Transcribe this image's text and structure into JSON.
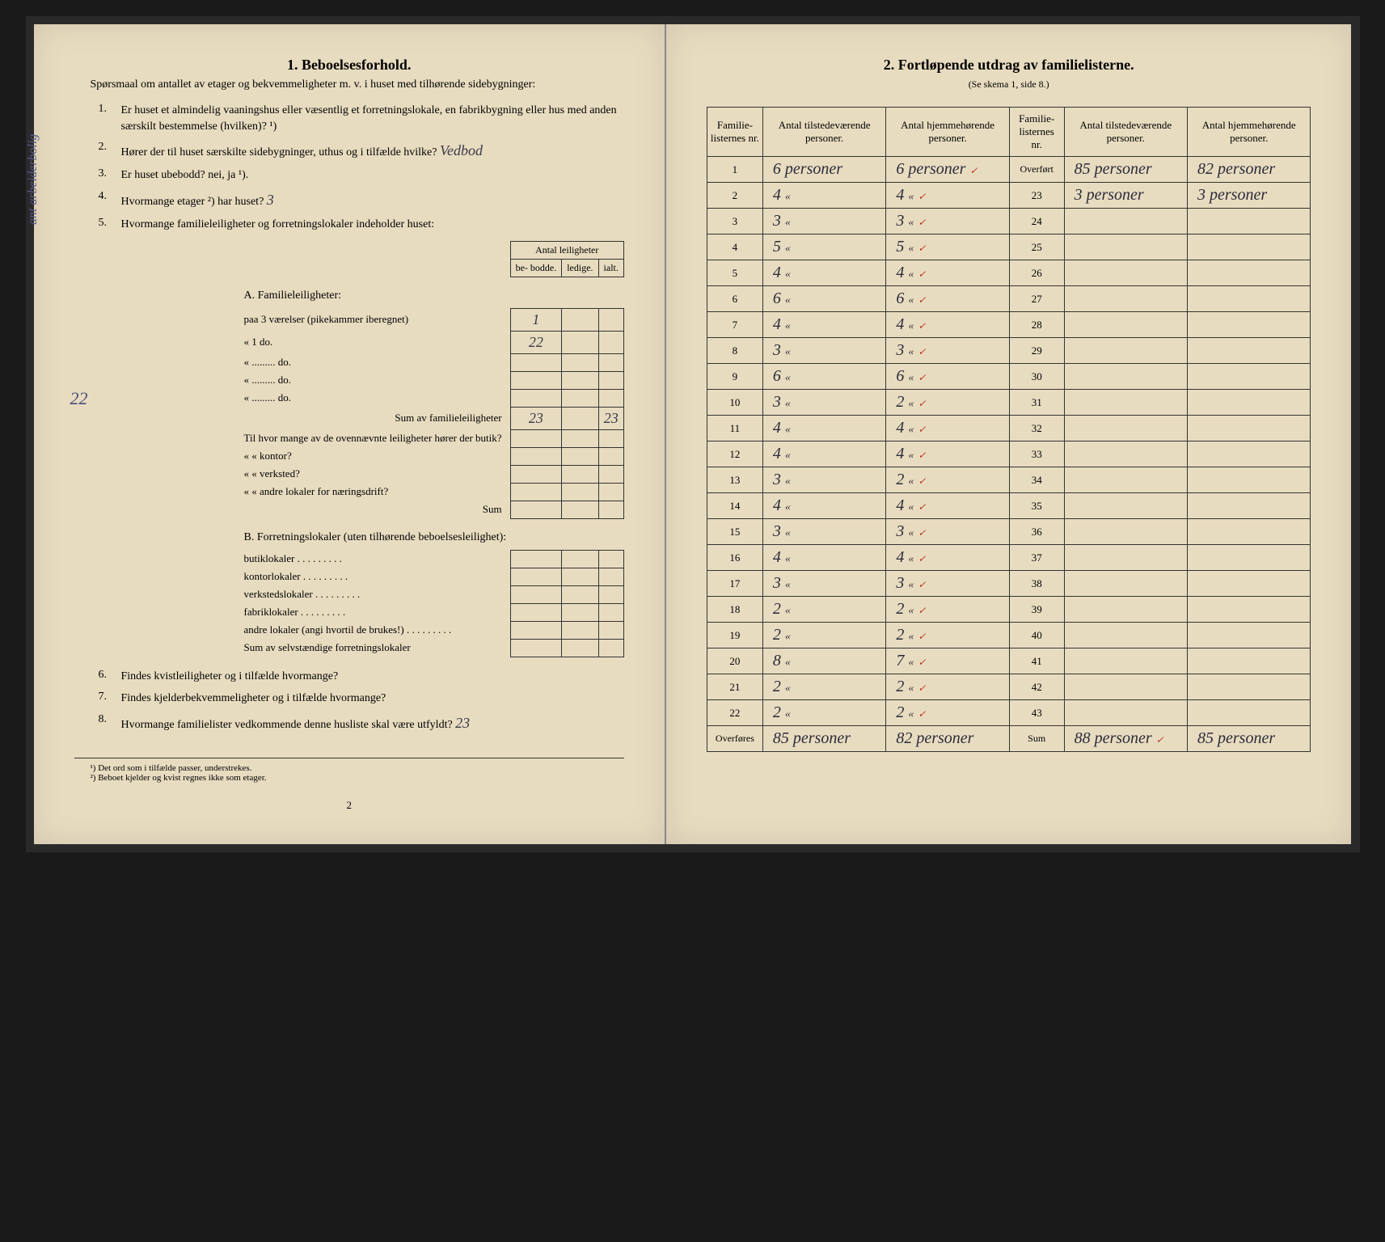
{
  "colors": {
    "paper": "#e8dcc0",
    "ink": "#1a1a1a",
    "handwriting": "#3a3a4a",
    "red_mark": "#c03020",
    "pencil_note": "#5a5a8a",
    "border": "#333333"
  },
  "left": {
    "title": "1.   Beboelsesforhold.",
    "intro": "Spørsmaal om antallet av etager og bekvemmeligheter m. v. i huset med tilhørende sidebygninger:",
    "margin_note": "ant arbeiderbolig",
    "side_number": "22",
    "questions": [
      {
        "n": "1.",
        "t": "Er huset et almindelig vaaningshus eller væsentlig et forretningslokale, en fabrikbygning eller hus med anden særskilt bestemmelse (hvilken)? ¹)"
      },
      {
        "n": "2.",
        "t": "Hører der til huset særskilte sidebygninger, uthus og i tilfælde hvilke?",
        "answer": "Vedbod"
      },
      {
        "n": "3.",
        "t": "Er huset ubebodd?  nei,  ja ¹).",
        "underline": "nei"
      },
      {
        "n": "4.",
        "t": "Hvormange etager ²) har huset?",
        "answer": "3"
      },
      {
        "n": "5.",
        "t": "Hvormange familieleiligheter og forretningslokaler indeholder huset:"
      }
    ],
    "innerTableHeader": {
      "top": "Antal leiligheter",
      "c1": "be-\nbodde.",
      "c2": "ledige.",
      "c3": "ialt."
    },
    "sectionA_title": "A. Familieleiligheter:",
    "sectionA_rows": [
      {
        "label": "paa 3 værelser (pikekammer iberegnet)",
        "bebodde": "1",
        "ledige": "",
        "ialt": ""
      },
      {
        "label": "«   1   do.",
        "bebodde": "22",
        "ledige": "",
        "ialt": ""
      },
      {
        "label": "«  .........  do.",
        "bebodde": "",
        "ledige": "",
        "ialt": ""
      },
      {
        "label": "«  .........  do.",
        "bebodde": "",
        "ledige": "",
        "ialt": ""
      },
      {
        "label": "«  .........  do.",
        "bebodde": "",
        "ledige": "",
        "ialt": ""
      }
    ],
    "sumA": {
      "label": "Sum av familieleiligheter",
      "bebodde": "23",
      "ledige": "",
      "ialt": "23"
    },
    "butikRows": [
      "Til hvor mange av de ovennævnte leiligheter hører der butik?",
      "«     «  kontor?",
      "«     «  verksted?",
      "«     «  andre lokaler for næringsdrift?"
    ],
    "sumLabel": "Sum",
    "sectionB_title": "B. Forretningslokaler (uten tilhørende beboelsesleilighet):",
    "sectionB_rows": [
      "butiklokaler",
      "kontorlokaler",
      "verkstedslokaler",
      "fabriklokaler",
      "andre lokaler (angi hvortil de brukes!)"
    ],
    "sumB": "Sum av selvstændige forretningslokaler",
    "q6": "Findes kvistleiligheter og i tilfælde hvormange?",
    "q7": "Findes kjelderbekvemmeligheter og i tilfælde hvormange?",
    "q8": "Hvormange familielister vedkommende denne husliste skal være utfyldt?",
    "q8_answer": "23",
    "footnote1": "¹) Det ord som i tilfælde passer, understrekes.",
    "footnote2": "²) Beboet kjelder og kvist regnes ikke som etager.",
    "pagenum": "2"
  },
  "right": {
    "title": "2.   Fortløpende utdrag av familielisterne.",
    "subtitle": "(Se skema 1, side 8.)",
    "headers": {
      "c1": "Familie-\nlisternes\nnr.",
      "c2": "Antal\ntilstedeværende\npersoner.",
      "c3": "Antal\nhjemmehørende\npersoner.",
      "c4": "Familie-\nlisternes\nnr.",
      "c5": "Antal\ntilstedeværende\npersoner.",
      "c6": "Antal\nhjemmehørende\npersoner."
    },
    "overfort_label": "Overført",
    "overfores_label": "Overføres",
    "sum_label": "Sum",
    "personer_word": "personer",
    "ditto": "«",
    "rows_left": [
      {
        "nr": "1",
        "til": "6",
        "hjem": "6",
        "unit": "personer"
      },
      {
        "nr": "2",
        "til": "4",
        "hjem": "4",
        "unit": "«"
      },
      {
        "nr": "3",
        "til": "3",
        "hjem": "3",
        "unit": "«"
      },
      {
        "nr": "4",
        "til": "5",
        "hjem": "5",
        "unit": "«"
      },
      {
        "nr": "5",
        "til": "4",
        "hjem": "4",
        "unit": "«"
      },
      {
        "nr": "6",
        "til": "6",
        "hjem": "6",
        "unit": "«"
      },
      {
        "nr": "7",
        "til": "4",
        "hjem": "4",
        "unit": "«"
      },
      {
        "nr": "8",
        "til": "3",
        "hjem": "3",
        "unit": "«"
      },
      {
        "nr": "9",
        "til": "6",
        "hjem": "6",
        "unit": "«"
      },
      {
        "nr": "10",
        "til": "3",
        "hjem": "2",
        "unit": "«"
      },
      {
        "nr": "11",
        "til": "4",
        "hjem": "4",
        "unit": "«"
      },
      {
        "nr": "12",
        "til": "4",
        "hjem": "4",
        "unit": "«"
      },
      {
        "nr": "13",
        "til": "3",
        "hjem": "2",
        "unit": "«"
      },
      {
        "nr": "14",
        "til": "4",
        "hjem": "4",
        "unit": "«"
      },
      {
        "nr": "15",
        "til": "3",
        "hjem": "3",
        "unit": "«"
      },
      {
        "nr": "16",
        "til": "4",
        "hjem": "4",
        "unit": "«"
      },
      {
        "nr": "17",
        "til": "3",
        "hjem": "3",
        "unit": "«"
      },
      {
        "nr": "18",
        "til": "2",
        "hjem": "2",
        "unit": "«"
      },
      {
        "nr": "19",
        "til": "2",
        "hjem": "2",
        "unit": "«"
      },
      {
        "nr": "20",
        "til": "8",
        "hjem": "7",
        "unit": "«"
      },
      {
        "nr": "21",
        "til": "2",
        "hjem": "2",
        "unit": "«"
      },
      {
        "nr": "22",
        "til": "2",
        "hjem": "2",
        "unit": "«"
      }
    ],
    "overfores": {
      "til": "85",
      "hjem": "82"
    },
    "overfort": {
      "til": "85",
      "hjem": "82"
    },
    "rows_right": [
      {
        "nr": "23",
        "til": "3",
        "hjem": "3",
        "unit": "personer"
      },
      {
        "nr": "24",
        "til": "",
        "hjem": "",
        "unit": ""
      },
      {
        "nr": "25",
        "til": "",
        "hjem": "",
        "unit": ""
      },
      {
        "nr": "26",
        "til": "",
        "hjem": "",
        "unit": ""
      },
      {
        "nr": "27",
        "til": "",
        "hjem": "",
        "unit": ""
      },
      {
        "nr": "28",
        "til": "",
        "hjem": "",
        "unit": ""
      },
      {
        "nr": "29",
        "til": "",
        "hjem": "",
        "unit": ""
      },
      {
        "nr": "30",
        "til": "",
        "hjem": "",
        "unit": ""
      },
      {
        "nr": "31",
        "til": "",
        "hjem": "",
        "unit": ""
      },
      {
        "nr": "32",
        "til": "",
        "hjem": "",
        "unit": ""
      },
      {
        "nr": "33",
        "til": "",
        "hjem": "",
        "unit": ""
      },
      {
        "nr": "34",
        "til": "",
        "hjem": "",
        "unit": ""
      },
      {
        "nr": "35",
        "til": "",
        "hjem": "",
        "unit": ""
      },
      {
        "nr": "36",
        "til": "",
        "hjem": "",
        "unit": ""
      },
      {
        "nr": "37",
        "til": "",
        "hjem": "",
        "unit": ""
      },
      {
        "nr": "38",
        "til": "",
        "hjem": "",
        "unit": ""
      },
      {
        "nr": "39",
        "til": "",
        "hjem": "",
        "unit": ""
      },
      {
        "nr": "40",
        "til": "",
        "hjem": "",
        "unit": ""
      },
      {
        "nr": "41",
        "til": "",
        "hjem": "",
        "unit": ""
      },
      {
        "nr": "42",
        "til": "",
        "hjem": "",
        "unit": ""
      },
      {
        "nr": "43",
        "til": "",
        "hjem": "",
        "unit": ""
      }
    ],
    "sum": {
      "til": "88",
      "hjem": "85"
    }
  }
}
